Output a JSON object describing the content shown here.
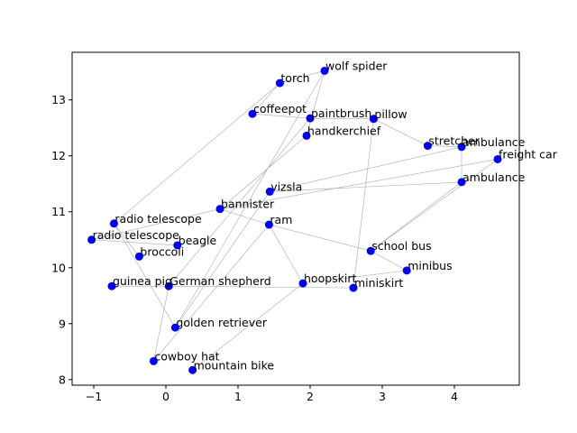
{
  "chart_data": {
    "type": "scatter",
    "title": "",
    "xlabel": "",
    "ylabel": "",
    "xlim": [
      -1.3,
      4.9
    ],
    "ylim": [
      7.9,
      13.85
    ],
    "xticks": [
      -1,
      0,
      1,
      2,
      3,
      4
    ],
    "yticks": [
      8,
      9,
      10,
      11,
      12,
      13
    ],
    "grid": false,
    "colors": {
      "point": "#0000ff",
      "edge": "#aaaaaa",
      "axis": "#000000"
    },
    "points": [
      {
        "label": "wolf spider",
        "x": 2.2,
        "y": 13.52
      },
      {
        "label": "torch",
        "x": 1.58,
        "y": 13.3
      },
      {
        "label": "coffeepot",
        "x": 1.2,
        "y": 12.75
      },
      {
        "label": "paintbrush",
        "x": 2.0,
        "y": 12.67
      },
      {
        "label": "pillow",
        "x": 2.88,
        "y": 12.66
      },
      {
        "label": "handkerchief",
        "x": 1.95,
        "y": 12.36
      },
      {
        "label": "stretcher",
        "x": 3.63,
        "y": 12.18
      },
      {
        "label": "ambulance",
        "x": 4.1,
        "y": 12.16
      },
      {
        "label": "freight car",
        "x": 4.6,
        "y": 11.94
      },
      {
        "label": "ambulance",
        "x": 4.1,
        "y": 11.53
      },
      {
        "label": "vizsla",
        "x": 1.44,
        "y": 11.36
      },
      {
        "label": "bannister",
        "x": 0.75,
        "y": 11.05
      },
      {
        "label": "radio telescope",
        "x": -0.72,
        "y": 10.79
      },
      {
        "label": "ram",
        "x": 1.43,
        "y": 10.77
      },
      {
        "label": "radio telescope",
        "x": -1.03,
        "y": 10.5
      },
      {
        "label": "beagle",
        "x": 0.16,
        "y": 10.4
      },
      {
        "label": "school bus",
        "x": 2.84,
        "y": 10.3
      },
      {
        "label": "broccoli",
        "x": -0.37,
        "y": 10.2
      },
      {
        "label": "minibus",
        "x": 3.34,
        "y": 9.95
      },
      {
        "label": "hoopskirt",
        "x": 1.9,
        "y": 9.72
      },
      {
        "label": "guinea pig",
        "x": -0.75,
        "y": 9.67
      },
      {
        "label": "German shepherd",
        "x": 0.04,
        "y": 9.67
      },
      {
        "label": "miniskirt",
        "x": 2.6,
        "y": 9.64
      },
      {
        "label": "golden retriever",
        "x": 0.13,
        "y": 8.93
      },
      {
        "label": "cowboy hat",
        "x": -0.17,
        "y": 8.33
      },
      {
        "label": "mountain bike",
        "x": 0.37,
        "y": 8.17
      }
    ],
    "edges": [
      [
        0,
        1
      ],
      [
        0,
        5
      ],
      [
        0,
        23
      ],
      [
        1,
        2
      ],
      [
        1,
        12
      ],
      [
        2,
        3
      ],
      [
        3,
        4
      ],
      [
        3,
        21
      ],
      [
        4,
        6
      ],
      [
        4,
        22
      ],
      [
        5,
        11
      ],
      [
        6,
        7
      ],
      [
        7,
        9
      ],
      [
        7,
        10
      ],
      [
        8,
        11
      ],
      [
        8,
        16
      ],
      [
        9,
        10
      ],
      [
        9,
        16
      ],
      [
        10,
        23
      ],
      [
        11,
        13
      ],
      [
        12,
        17
      ],
      [
        12,
        23
      ],
      [
        13,
        16
      ],
      [
        13,
        19
      ],
      [
        13,
        24
      ],
      [
        14,
        15
      ],
      [
        16,
        18
      ],
      [
        18,
        19
      ],
      [
        19,
        25
      ],
      [
        20,
        21
      ],
      [
        21,
        22
      ],
      [
        21,
        24
      ],
      [
        14,
        11
      ]
    ]
  }
}
